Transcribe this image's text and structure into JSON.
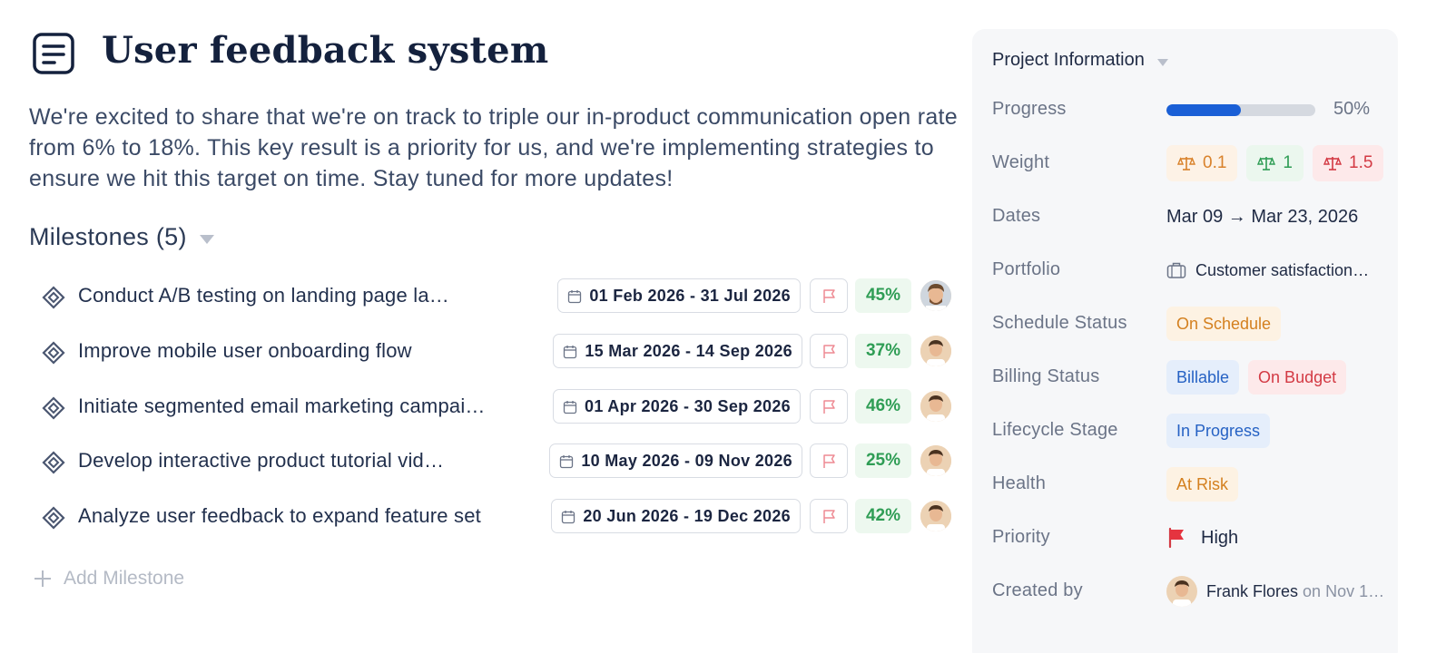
{
  "page": {
    "title": "User feedback system",
    "description": "We're excited to share that we're on track to triple our in-product communication open rate from 6% to 18%. This key result is a priority for us, and we're implementing strategies to ensure we hit this target on time.  Stay tuned for more updates!"
  },
  "milestones": {
    "header": "Milestones (5)",
    "add_label": "Add Milestone",
    "items": [
      {
        "name": "Conduct A/B testing on landing page la…",
        "dates": "01 Feb 2026 - 31 Jul 2026",
        "progress": "45%"
      },
      {
        "name": "Improve mobile user onboarding flow",
        "dates": "15 Mar 2026 - 14 Sep 2026",
        "progress": "37%"
      },
      {
        "name": "Initiate segmented email marketing campai…",
        "dates": "01 Apr 2026 - 30 Sep 2026",
        "progress": "46%"
      },
      {
        "name": "Develop interactive product tutorial vid…",
        "dates": "10 May 2026 - 09 Nov 2026",
        "progress": "25%"
      },
      {
        "name": "Analyze user feedback to expand feature set",
        "dates": "20 Jun 2026 - 19 Dec 2026",
        "progress": "42%"
      }
    ]
  },
  "panel": {
    "title": "Project Information",
    "progress": {
      "label": "Progress",
      "value": "50%",
      "fraction": 0.5
    },
    "weight": {
      "label": "Weight",
      "values": [
        "0.1",
        "1",
        "1.5"
      ]
    },
    "dates": {
      "label": "Dates",
      "value": "Mar 09 → Mar 23, 2026"
    },
    "portfolio": {
      "label": "Portfolio",
      "value": "Customer satisfaction…"
    },
    "schedule_status": {
      "label": "Schedule Status",
      "value": "On Schedule"
    },
    "billing_status": {
      "label": "Billing Status",
      "values": [
        "Billable",
        "On Budget"
      ]
    },
    "lifecycle_stage": {
      "label": "Lifecycle Stage",
      "value": "In Progress"
    },
    "health": {
      "label": "Health",
      "value": "At Risk"
    },
    "priority": {
      "label": "Priority",
      "value": "High"
    },
    "created_by": {
      "label": "Created by",
      "name": "Frank Flores",
      "on": "on",
      "date": "Nov 1…"
    }
  },
  "colors": {
    "accent_blue": "#1a5fd6",
    "success_green": "#2f9d55",
    "warning_orange": "#d9822b",
    "danger_red": "#d33a44"
  }
}
